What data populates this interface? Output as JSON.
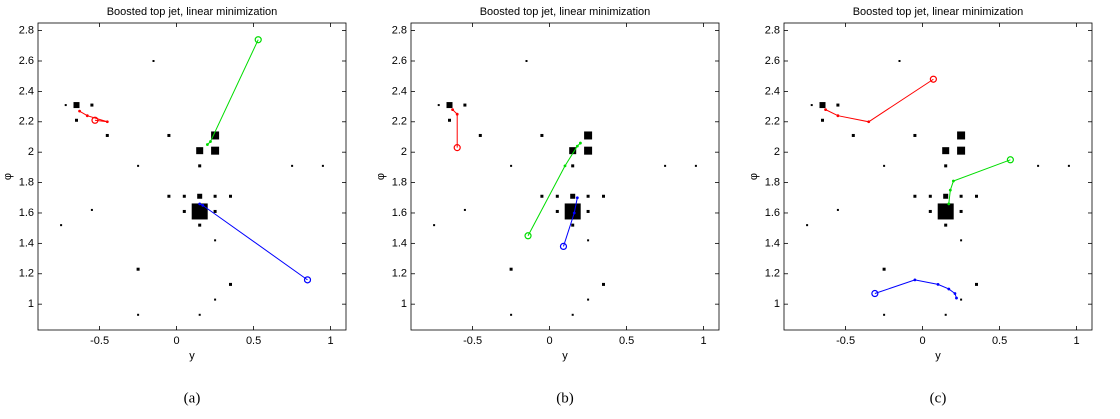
{
  "chart_data": [
    {
      "type": "scatter",
      "title": "Boosted top jet, linear minimization",
      "x_label": "y",
      "y_label": "φ",
      "caption": "(a)",
      "xlim": [
        -0.9,
        1.1
      ],
      "ylim": [
        0.83,
        2.85
      ],
      "xticks": [
        -0.5,
        0,
        0.5,
        1
      ],
      "yticks": [
        1,
        1.2,
        1.4,
        1.6,
        1.8,
        2,
        2.2,
        2.4,
        2.6,
        2.8
      ],
      "cells": {
        "color": "#000000",
        "x": [
          -0.65,
          -0.72,
          -0.55,
          -0.65,
          -0.45,
          -0.15,
          -0.05,
          0.25,
          0.15,
          0.25,
          0.15,
          -0.25,
          0.75,
          0.95,
          -0.05,
          0.05,
          0.15,
          0.25,
          0.35,
          0.15,
          0.25,
          0.05,
          -0.55,
          -0.75,
          0.15,
          0.25,
          -0.25,
          0.35,
          0.25,
          -0.25,
          0.15
        ],
        "y": [
          2.31,
          2.31,
          2.31,
          2.21,
          2.11,
          2.6,
          2.11,
          2.11,
          2.01,
          2.01,
          1.91,
          1.91,
          1.91,
          1.91,
          1.71,
          1.71,
          1.71,
          1.71,
          1.71,
          1.61,
          1.61,
          1.61,
          1.62,
          1.52,
          1.52,
          1.42,
          1.23,
          1.13,
          1.03,
          0.93,
          0.93
        ],
        "size": [
          6,
          2,
          3,
          3,
          3,
          2,
          3,
          8,
          7,
          8,
          3,
          2,
          2,
          2,
          3,
          3,
          5,
          3,
          3,
          16,
          3,
          3,
          2,
          2,
          3,
          2,
          3,
          3,
          2,
          2,
          2
        ]
      },
      "series": [
        {
          "color": "#ff0000",
          "x": [
            -0.53,
            -0.45,
            -0.58,
            -0.63
          ],
          "y": [
            2.21,
            2.2,
            2.24,
            2.27
          ]
        },
        {
          "color": "#00dd00",
          "x": [
            0.53,
            0.22,
            0.2
          ],
          "y": [
            2.74,
            2.07,
            2.05
          ]
        },
        {
          "color": "#0000ff",
          "x": [
            0.85,
            0.17,
            0.15
          ],
          "y": [
            1.16,
            1.65,
            1.66
          ]
        }
      ]
    },
    {
      "type": "scatter",
      "title": "Boosted top jet, linear minimization",
      "x_label": "y",
      "y_label": "φ",
      "caption": "(b)",
      "xlim": [
        -0.9,
        1.1
      ],
      "ylim": [
        0.83,
        2.85
      ],
      "xticks": [
        -0.5,
        0,
        0.5,
        1
      ],
      "yticks": [
        1,
        1.2,
        1.4,
        1.6,
        1.8,
        2,
        2.2,
        2.4,
        2.6,
        2.8
      ],
      "cells": {
        "color": "#000000",
        "x": [
          -0.65,
          -0.72,
          -0.55,
          -0.65,
          -0.45,
          -0.15,
          -0.05,
          0.25,
          0.15,
          0.25,
          0.15,
          -0.25,
          0.75,
          0.95,
          -0.05,
          0.05,
          0.15,
          0.25,
          0.35,
          0.15,
          0.25,
          0.05,
          -0.55,
          -0.75,
          0.15,
          0.25,
          -0.25,
          0.35,
          0.25,
          -0.25,
          0.15
        ],
        "y": [
          2.31,
          2.31,
          2.31,
          2.21,
          2.11,
          2.6,
          2.11,
          2.11,
          2.01,
          2.01,
          1.91,
          1.91,
          1.91,
          1.91,
          1.71,
          1.71,
          1.71,
          1.71,
          1.71,
          1.61,
          1.61,
          1.61,
          1.62,
          1.52,
          1.52,
          1.42,
          1.23,
          1.13,
          1.03,
          0.93,
          0.93
        ],
        "size": [
          6,
          2,
          3,
          3,
          3,
          2,
          3,
          8,
          7,
          8,
          3,
          2,
          2,
          2,
          3,
          3,
          5,
          3,
          3,
          16,
          3,
          3,
          2,
          2,
          3,
          2,
          3,
          3,
          2,
          2,
          2
        ]
      },
      "series": [
        {
          "color": "#ff0000",
          "x": [
            -0.6,
            -0.6,
            -0.63
          ],
          "y": [
            2.03,
            2.25,
            2.28
          ]
        },
        {
          "color": "#00dd00",
          "x": [
            -0.14,
            0.1,
            0.18,
            0.2
          ],
          "y": [
            1.45,
            1.91,
            2.04,
            2.06
          ]
        },
        {
          "color": "#0000ff",
          "x": [
            0.09,
            0.16,
            0.18
          ],
          "y": [
            1.38,
            1.6,
            1.7
          ]
        }
      ]
    },
    {
      "type": "scatter",
      "title": "Boosted top jet, linear minimization",
      "x_label": "y",
      "y_label": "φ",
      "caption": "(c)",
      "xlim": [
        -0.9,
        1.1
      ],
      "ylim": [
        0.83,
        2.85
      ],
      "xticks": [
        -0.5,
        0,
        0.5,
        1
      ],
      "yticks": [
        1,
        1.2,
        1.4,
        1.6,
        1.8,
        2,
        2.2,
        2.4,
        2.6,
        2.8
      ],
      "cells": {
        "color": "#000000",
        "x": [
          -0.65,
          -0.72,
          -0.55,
          -0.65,
          -0.45,
          -0.15,
          -0.05,
          0.25,
          0.15,
          0.25,
          0.15,
          -0.25,
          0.75,
          0.95,
          -0.05,
          0.05,
          0.15,
          0.25,
          0.35,
          0.15,
          0.25,
          0.05,
          -0.55,
          -0.75,
          0.15,
          0.25,
          -0.25,
          0.35,
          0.25,
          -0.25,
          0.15
        ],
        "y": [
          2.31,
          2.31,
          2.31,
          2.21,
          2.11,
          2.6,
          2.11,
          2.11,
          2.01,
          2.01,
          1.91,
          1.91,
          1.91,
          1.91,
          1.71,
          1.71,
          1.71,
          1.71,
          1.71,
          1.61,
          1.61,
          1.61,
          1.62,
          1.52,
          1.52,
          1.42,
          1.23,
          1.13,
          1.03,
          0.93,
          0.93
        ],
        "size": [
          6,
          2,
          3,
          3,
          3,
          2,
          3,
          8,
          7,
          8,
          3,
          2,
          2,
          2,
          3,
          3,
          5,
          3,
          3,
          16,
          3,
          3,
          2,
          2,
          3,
          2,
          3,
          3,
          2,
          2,
          2
        ]
      },
      "series": [
        {
          "color": "#ff0000",
          "x": [
            0.07,
            -0.35,
            -0.55,
            -0.63
          ],
          "y": [
            2.48,
            2.2,
            2.24,
            2.28
          ]
        },
        {
          "color": "#00dd00",
          "x": [
            0.57,
            0.2,
            0.18,
            0.17
          ],
          "y": [
            1.95,
            1.81,
            1.75,
            1.66
          ]
        },
        {
          "color": "#0000ff",
          "x": [
            -0.31,
            -0.05,
            0.1,
            0.17,
            0.21,
            0.22
          ],
          "y": [
            1.07,
            1.16,
            1.13,
            1.1,
            1.07,
            1.04
          ]
        }
      ]
    }
  ]
}
